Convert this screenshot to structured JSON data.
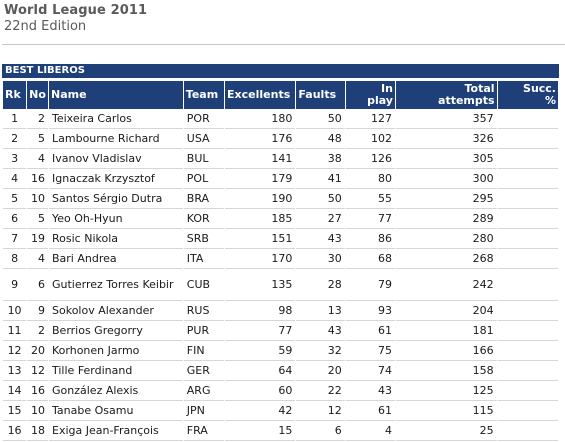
{
  "header": {
    "title": "World League 2011",
    "subtitle": "22nd Edition"
  },
  "section_label": "BEST LIBEROS",
  "columns": {
    "rk": "Rk",
    "no": "No",
    "name": "Name",
    "team": "Team",
    "excellents": "Excellents",
    "faults": "Faults",
    "in_play_1": "In",
    "in_play_2": "play",
    "total_1": "Total",
    "total_2": "attempts",
    "succ_1": "Succ.",
    "succ_2": "%"
  },
  "rows": [
    {
      "rk": "1",
      "no": "2",
      "name": "Teixeira Carlos",
      "team": "POR",
      "excellents": "180",
      "faults": "50",
      "in_play": "127",
      "total": "357",
      "succ": ""
    },
    {
      "rk": "2",
      "no": "5",
      "name": "Lambourne Richard",
      "team": "USA",
      "excellents": "176",
      "faults": "48",
      "in_play": "102",
      "total": "326",
      "succ": ""
    },
    {
      "rk": "3",
      "no": "4",
      "name": "Ivanov Vladislav",
      "team": "BUL",
      "excellents": "141",
      "faults": "38",
      "in_play": "126",
      "total": "305",
      "succ": ""
    },
    {
      "rk": "4",
      "no": "16",
      "name": "Ignaczak Krzysztof",
      "team": "POL",
      "excellents": "179",
      "faults": "41",
      "in_play": "80",
      "total": "300",
      "succ": ""
    },
    {
      "rk": "5",
      "no": "10",
      "name": "Santos Sérgio Dutra",
      "team": "BRA",
      "excellents": "190",
      "faults": "50",
      "in_play": "55",
      "total": "295",
      "succ": ""
    },
    {
      "rk": "6",
      "no": "5",
      "name": "Yeo Oh-Hyun",
      "team": "KOR",
      "excellents": "185",
      "faults": "27",
      "in_play": "77",
      "total": "289",
      "succ": ""
    },
    {
      "rk": "7",
      "no": "19",
      "name": "Rosic Nikola",
      "team": "SRB",
      "excellents": "151",
      "faults": "43",
      "in_play": "86",
      "total": "280",
      "succ": ""
    },
    {
      "rk": "8",
      "no": "4",
      "name": "Bari Andrea",
      "team": "ITA",
      "excellents": "170",
      "faults": "30",
      "in_play": "68",
      "total": "268",
      "succ": ""
    },
    {
      "rk": "9",
      "no": "6",
      "name": "Gutierrez Torres Keibir",
      "team": "CUB",
      "excellents": "135",
      "faults": "28",
      "in_play": "79",
      "total": "242",
      "succ": "",
      "tall": true
    },
    {
      "rk": "10",
      "no": "9",
      "name": "Sokolov Alexander",
      "team": "RUS",
      "excellents": "98",
      "faults": "13",
      "in_play": "93",
      "total": "204",
      "succ": ""
    },
    {
      "rk": "11",
      "no": "2",
      "name": "Berrios Gregorry",
      "team": "PUR",
      "excellents": "77",
      "faults": "43",
      "in_play": "61",
      "total": "181",
      "succ": ""
    },
    {
      "rk": "12",
      "no": "20",
      "name": "Korhonen Jarmo",
      "team": "FIN",
      "excellents": "59",
      "faults": "32",
      "in_play": "75",
      "total": "166",
      "succ": ""
    },
    {
      "rk": "13",
      "no": "12",
      "name": "Tille Ferdinand",
      "team": "GER",
      "excellents": "64",
      "faults": "20",
      "in_play": "74",
      "total": "158",
      "succ": ""
    },
    {
      "rk": "14",
      "no": "16",
      "name": "González Alexis",
      "team": "ARG",
      "excellents": "60",
      "faults": "22",
      "in_play": "43",
      "total": "125",
      "succ": ""
    },
    {
      "rk": "15",
      "no": "10",
      "name": "Tanabe Osamu",
      "team": "JPN",
      "excellents": "42",
      "faults": "12",
      "in_play": "61",
      "total": "115",
      "succ": ""
    },
    {
      "rk": "16",
      "no": "18",
      "name": "Exiga Jean-François",
      "team": "FRA",
      "excellents": "15",
      "faults": "6",
      "in_play": "4",
      "total": "25",
      "succ": ""
    }
  ]
}
